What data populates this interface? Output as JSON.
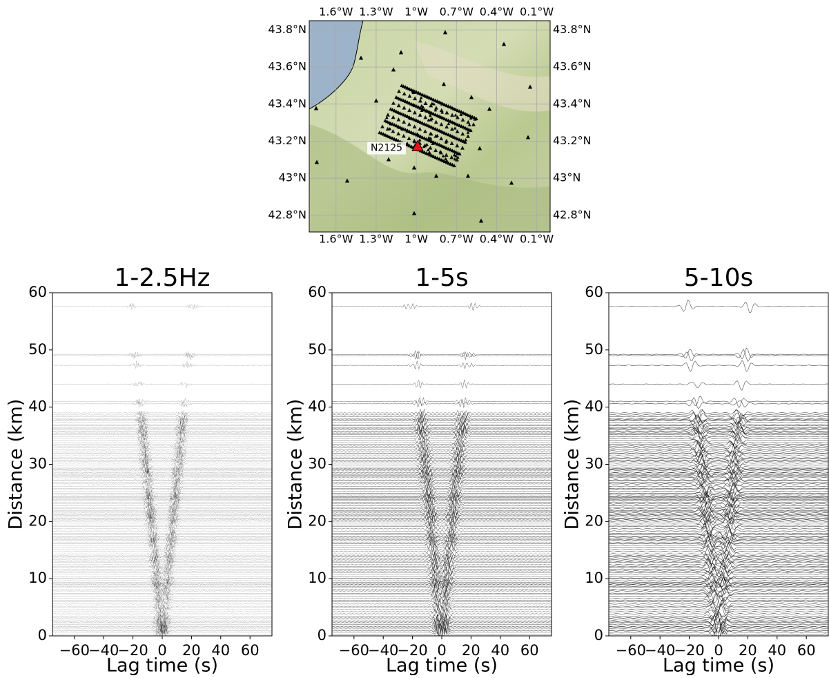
{
  "map": {
    "type": "map",
    "xlim": [
      -1.8,
      0.0
    ],
    "ylim": [
      42.71,
      43.85
    ],
    "xticks": [
      {
        "value": -1.6,
        "label": "1.6°W"
      },
      {
        "value": -1.3,
        "label": "1.3°W"
      },
      {
        "value": -1.0,
        "label": "1°W"
      },
      {
        "value": -0.7,
        "label": "0.7°W"
      },
      {
        "value": -0.4,
        "label": "0.4°W"
      },
      {
        "value": -0.1,
        "label": "0.1°W"
      }
    ],
    "yticks": [
      {
        "value": 42.8,
        "label": "42.8°N"
      },
      {
        "value": 43.0,
        "label": "43°N"
      },
      {
        "value": 43.2,
        "label": "43.2°N"
      },
      {
        "value": 43.4,
        "label": "43.4°N"
      },
      {
        "value": 43.6,
        "label": "43.6°N"
      },
      {
        "value": 43.8,
        "label": "43.8°N"
      }
    ],
    "grid": true,
    "source": {
      "label": "N2125",
      "lon": -0.99,
      "lat": 43.17,
      "color": "#e8141b"
    }
  },
  "chart_data": [
    {
      "type": "wiggle",
      "title": "1-2.5Hz",
      "xlabel": "Lag time (s)",
      "ylabel": "Distance (km)",
      "xlim": [
        -75,
        75
      ],
      "ylim": [
        0,
        60
      ],
      "xticks": [
        {
          "value": -60,
          "label": "−60"
        },
        {
          "value": -40,
          "label": "−40"
        },
        {
          "value": -20,
          "label": "−20"
        },
        0,
        20,
        40,
        60
      ],
      "yticks": [
        0,
        10,
        20,
        30,
        40,
        50,
        60
      ]
    },
    {
      "type": "wiggle",
      "title": "1-5s",
      "xlabel": "Lag time (s)",
      "ylabel": "Distance (km)",
      "xlim": [
        -75,
        75
      ],
      "ylim": [
        0,
        60
      ],
      "xticks": [
        {
          "value": -60,
          "label": "−60"
        },
        {
          "value": -40,
          "label": "−40"
        },
        {
          "value": -20,
          "label": "−20"
        },
        0,
        20,
        40,
        60
      ],
      "yticks": [
        0,
        10,
        20,
        30,
        40,
        50,
        60
      ]
    },
    {
      "type": "wiggle",
      "title": "5-10s",
      "xlabel": "Lag time (s)",
      "ylabel": "Distance (km)",
      "xlim": [
        -75,
        75
      ],
      "ylim": [
        0,
        60
      ],
      "xticks": [
        {
          "value": -60,
          "label": "−60"
        },
        {
          "value": -40,
          "label": "−40"
        },
        {
          "value": -20,
          "label": "−20"
        },
        0,
        20,
        40,
        60
      ],
      "yticks": [
        0,
        10,
        20,
        30,
        40,
        50,
        60
      ]
    }
  ]
}
